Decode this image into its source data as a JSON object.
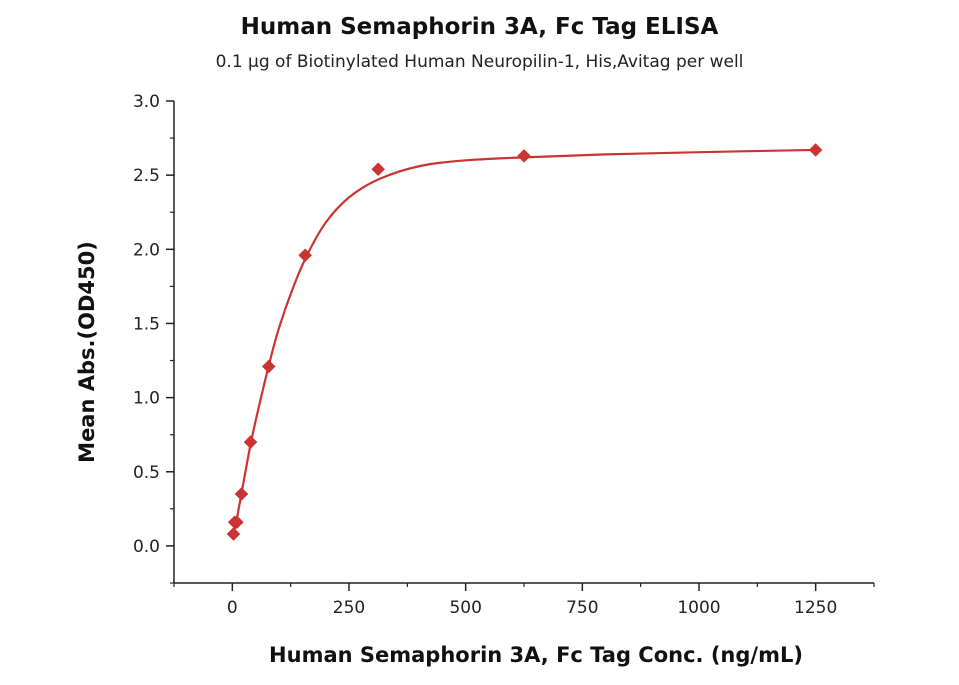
{
  "chart_data": {
    "type": "scatter",
    "title": "Human Semaphorin 3A, Fc Tag ELISA",
    "subtitle": "0.1 µg of Biotinylated Human Neuropilin-1, His,Avitag per well",
    "xlabel": "Human Semaphorin 3A, Fc Tag Conc. (ng/mL)",
    "ylabel": "Mean Abs.(OD450)",
    "xlim": [
      -125,
      1375
    ],
    "ylim": [
      -0.25,
      3.0
    ],
    "xticks": [
      0,
      250,
      500,
      750,
      1000,
      1250
    ],
    "xtick_labels": [
      "0",
      "250",
      "500",
      "750",
      "1000",
      "1250"
    ],
    "yticks": [
      0.0,
      0.5,
      1.0,
      1.5,
      2.0,
      2.5,
      3.0
    ],
    "ytick_labels": [
      "0.0",
      "0.5",
      "1.0",
      "1.5",
      "2.0",
      "2.5",
      "3.0"
    ],
    "grid": false,
    "legend": "none",
    "series": [
      {
        "marker": "diamond",
        "color": "#cc3333",
        "points": [
          {
            "x": 2.4,
            "y": 0.08
          },
          {
            "x": 4.9,
            "y": 0.16
          },
          {
            "x": 9.8,
            "y": 0.16
          },
          {
            "x": 19.5,
            "y": 0.35
          },
          {
            "x": 39,
            "y": 0.7
          },
          {
            "x": 78,
            "y": 1.21
          },
          {
            "x": 156,
            "y": 1.96
          },
          {
            "x": 312.5,
            "y": 2.54
          },
          {
            "x": 625,
            "y": 2.63
          },
          {
            "x": 1250,
            "y": 2.67
          }
        ]
      }
    ],
    "fit_curve": {
      "color": "#cc3333",
      "points": [
        {
          "x": 2,
          "y": 0.07
        },
        {
          "x": 10,
          "y": 0.19
        },
        {
          "x": 20,
          "y": 0.36
        },
        {
          "x": 40,
          "y": 0.7
        },
        {
          "x": 60,
          "y": 0.98
        },
        {
          "x": 80,
          "y": 1.24
        },
        {
          "x": 100,
          "y": 1.47
        },
        {
          "x": 130,
          "y": 1.74
        },
        {
          "x": 160,
          "y": 1.96
        },
        {
          "x": 200,
          "y": 2.18
        },
        {
          "x": 250,
          "y": 2.35
        },
        {
          "x": 312,
          "y": 2.47
        },
        {
          "x": 400,
          "y": 2.56
        },
        {
          "x": 500,
          "y": 2.6
        },
        {
          "x": 625,
          "y": 2.62
        },
        {
          "x": 800,
          "y": 2.64
        },
        {
          "x": 1000,
          "y": 2.655
        },
        {
          "x": 1250,
          "y": 2.67
        }
      ]
    }
  }
}
